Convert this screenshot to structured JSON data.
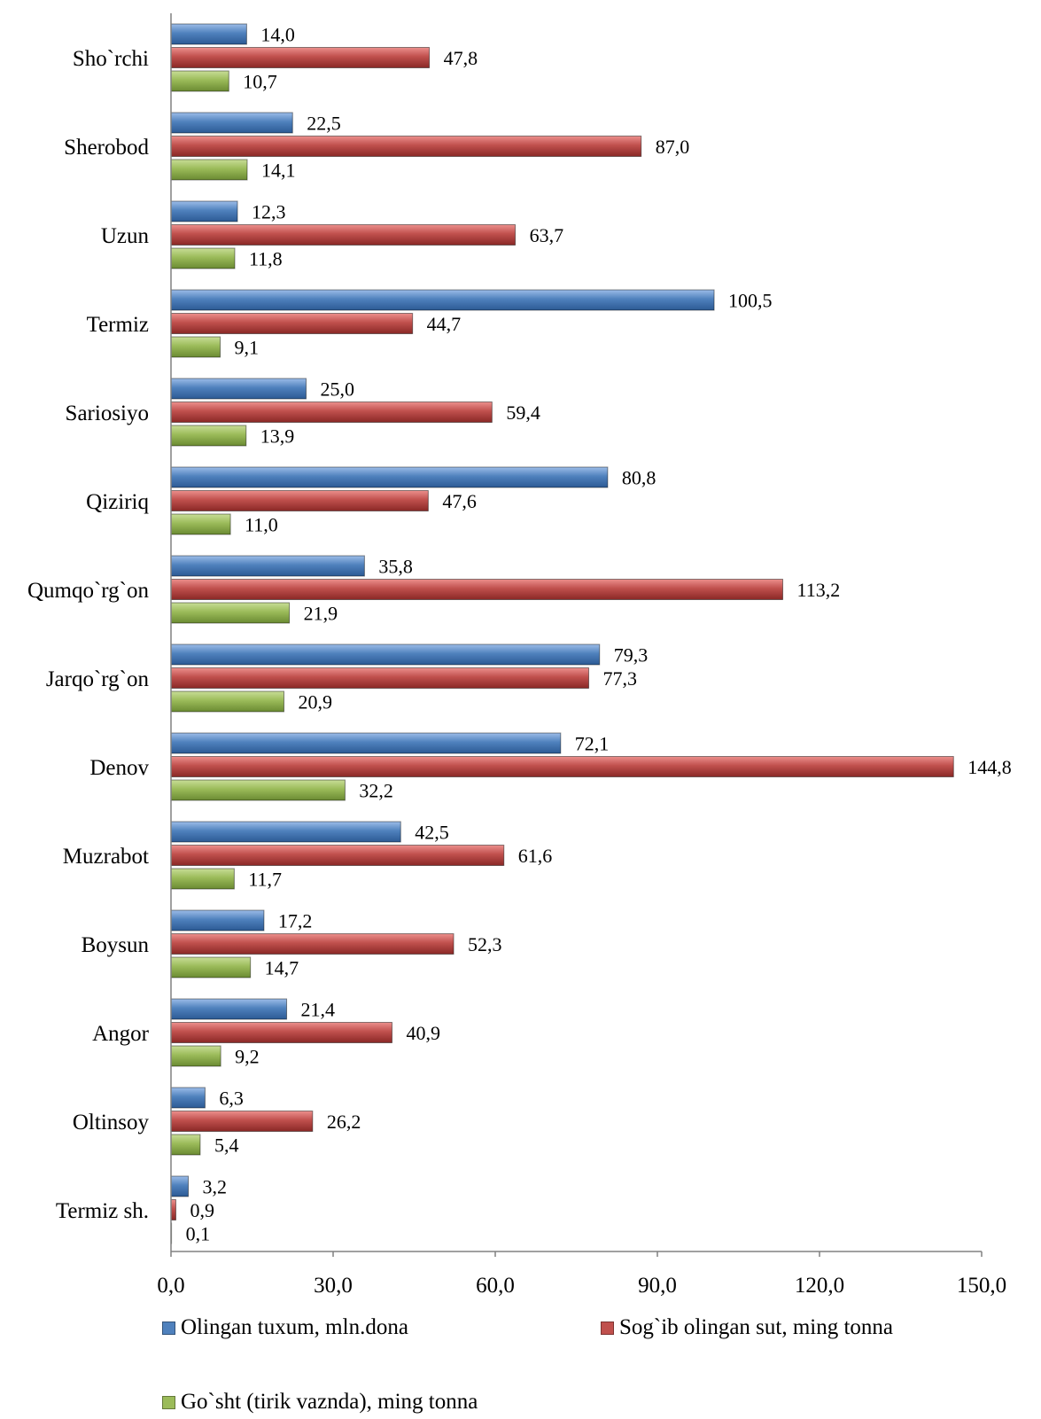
{
  "chart_data": {
    "type": "bar",
    "orientation": "horizontal",
    "categories": [
      "Sho`rchi",
      "Sherobod",
      "Uzun",
      "Termiz",
      "Sariosiyo",
      "Qiziriq",
      "Qumqo`rg`on",
      "Jarqo`rg`on",
      "Denov",
      "Muzrabot",
      "Boysun",
      "Angor",
      "Oltinsoy",
      "Termiz sh."
    ],
    "series": [
      {
        "name": "Olingan tuxum, mln.dona",
        "color": "#4f81bd",
        "values": [
          14.0,
          22.5,
          12.3,
          100.5,
          25.0,
          80.8,
          35.8,
          79.3,
          72.1,
          42.5,
          17.2,
          21.4,
          6.3,
          3.2
        ],
        "labels": [
          "14,0",
          "22,5",
          "12,3",
          "100,5",
          "25,0",
          "80,8",
          "35,8",
          "79,3",
          "72,1",
          "42,5",
          "17,2",
          "21,4",
          "6,3",
          "3,2"
        ]
      },
      {
        "name": "Sog`ib olingan sut, ming tonna",
        "color": "#c0504d",
        "values": [
          47.8,
          87.0,
          63.7,
          44.7,
          59.4,
          47.6,
          113.2,
          77.3,
          144.8,
          61.6,
          52.3,
          40.9,
          26.2,
          0.9
        ],
        "labels": [
          "47,8",
          "87,0",
          "63,7",
          "44,7",
          "59,4",
          "47,6",
          "113,2",
          "77,3",
          "144,8",
          "61,6",
          "52,3",
          "40,9",
          "26,2",
          "0,9"
        ]
      },
      {
        "name": "Go`sht (tirik vaznda), ming tonna",
        "color": "#9bbb59",
        "values": [
          10.7,
          14.1,
          11.8,
          9.1,
          13.9,
          11.0,
          21.9,
          20.9,
          32.2,
          11.7,
          14.7,
          9.2,
          5.4,
          0.1
        ],
        "labels": [
          "10,7",
          "14,1",
          "11,8",
          "9,1",
          "13,9",
          "11,0",
          "21,9",
          "20,9",
          "32,2",
          "11,7",
          "14,7",
          "9,2",
          "5,4",
          "0,1"
        ]
      }
    ],
    "xlim": [
      0,
      150
    ],
    "ticks": [
      "0,0",
      "30,0",
      "60,0",
      "90,0",
      "120,0",
      "150,0"
    ],
    "tick_values": [
      0,
      30,
      60,
      90,
      120,
      150
    ],
    "grid": false,
    "legend_position": "bottom"
  },
  "legend": {
    "items": [
      {
        "label": "Olingan tuxum, mln.dona",
        "color": "#4f81bd"
      },
      {
        "label": "Sog`ib olingan sut, ming tonna",
        "color": "#c0504d"
      },
      {
        "label": "Go`sht (tirik vaznda), ming tonna",
        "color": "#9bbb59"
      }
    ]
  }
}
